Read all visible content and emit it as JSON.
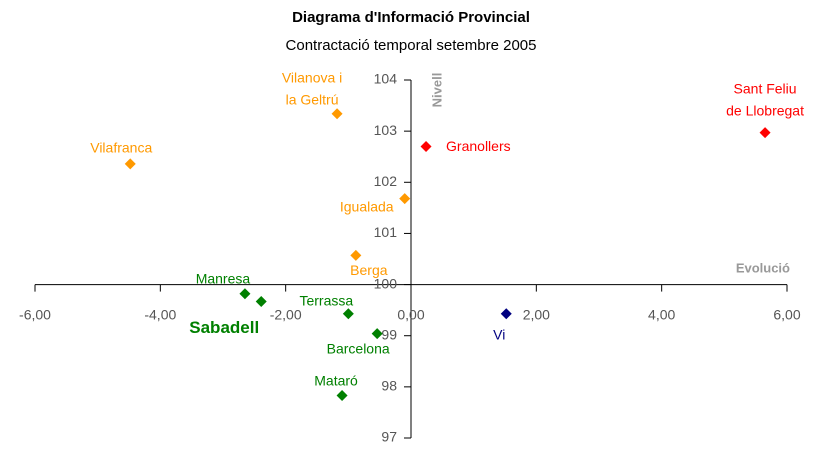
{
  "chart_data": {
    "type": "scatter",
    "title": "Diagrama d'Informació Provincial",
    "subtitle": "Contractació temporal setembre 2005",
    "xlabel": "Evolució",
    "ylabel": "Nivell",
    "xlim": [
      -6,
      6
    ],
    "ylim": [
      97,
      104
    ],
    "xticks": [
      {
        "value": -6,
        "label": "-6,00"
      },
      {
        "value": -4,
        "label": "-4,00"
      },
      {
        "value": -2,
        "label": "-2,00"
      },
      {
        "value": 0,
        "label": "0,00"
      },
      {
        "value": 2,
        "label": "2,00"
      },
      {
        "value": 4,
        "label": "4,00"
      },
      {
        "value": 6,
        "label": "6,00"
      }
    ],
    "yticks": [
      97,
      98,
      99,
      100,
      101,
      102,
      103,
      104
    ],
    "points": [
      {
        "label": [
          "Vilanova i",
          "la Geltrú"
        ],
        "x": -1.18,
        "y": 103.34,
        "color": "#ff9900"
      },
      {
        "label": [
          "Vilafranca"
        ],
        "x": -4.48,
        "y": 102.36,
        "color": "#ff9900"
      },
      {
        "label": [
          "Granollers"
        ],
        "x": 0.24,
        "y": 102.7,
        "color": "#ff0000"
      },
      {
        "label": [
          "Sant Feliu",
          "de Llobregat"
        ],
        "x": 5.65,
        "y": 102.97,
        "color": "#ff0000"
      },
      {
        "label": [
          "Igualada"
        ],
        "x": -0.1,
        "y": 101.68,
        "color": "#ff9900"
      },
      {
        "label": [
          "Berga"
        ],
        "x": -0.88,
        "y": 100.57,
        "color": "#ff9900"
      },
      {
        "label": [
          "Manresa"
        ],
        "x": -2.65,
        "y": 99.82,
        "color": "#008000"
      },
      {
        "label": [
          "Sabadell"
        ],
        "x": -2.39,
        "y": 99.67,
        "color": "#008000"
      },
      {
        "label": [
          "Terrassa"
        ],
        "x": -1.0,
        "y": 99.43,
        "color": "#008000"
      },
      {
        "label": [
          "Barcelona"
        ],
        "x": -0.54,
        "y": 99.04,
        "color": "#008000"
      },
      {
        "label": [
          "Mataró"
        ],
        "x": -1.1,
        "y": 97.83,
        "color": "#008000"
      },
      {
        "label": [
          "Vi"
        ],
        "x": 1.52,
        "y": 99.43,
        "color": "#000080"
      }
    ]
  }
}
